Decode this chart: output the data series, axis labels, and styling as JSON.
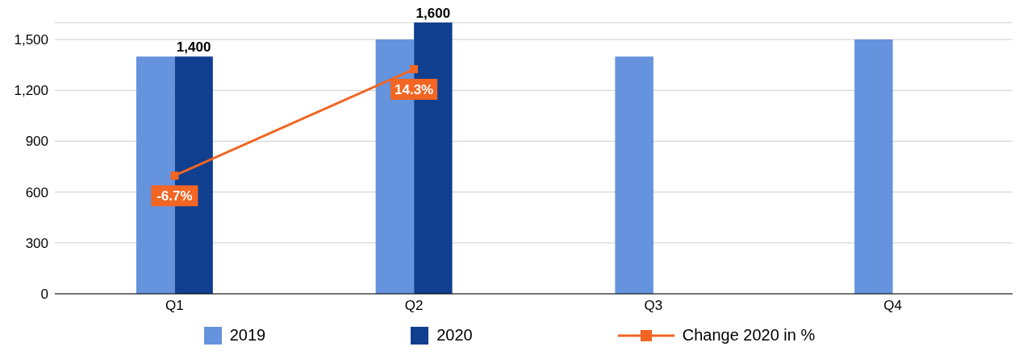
{
  "chart_data": {
    "type": "bar",
    "categories": [
      "Q1",
      "Q2",
      "Q3",
      "Q4"
    ],
    "series": [
      {
        "name": "2019",
        "color": "#6693dd",
        "values": [
          1400,
          1500,
          1400,
          1500
        ]
      },
      {
        "name": "2020",
        "color": "#113f8f",
        "values": [
          1400,
          1600,
          null,
          null
        ],
        "value_labels": [
          "1,400",
          "1,600",
          null,
          null
        ]
      },
      {
        "name": "Change 2020 in %",
        "type": "line",
        "axis": "y2",
        "color": "#f26522",
        "values": [
          -6.7,
          14.3,
          null,
          null
        ],
        "value_labels": [
          "-6.7%",
          "14.3%",
          null,
          null
        ]
      }
    ],
    "ylim": [
      0,
      1600
    ],
    "yticks": [
      0,
      300,
      600,
      900,
      {
        "value": 1200,
        "label": "1,200"
      },
      {
        "value": 1500,
        "label": "1,500"
      }
    ],
    "y2lim": [
      -30,
      23.5
    ],
    "grid": "y",
    "legend": "bottom",
    "marker": "square",
    "line_style": "solid"
  }
}
